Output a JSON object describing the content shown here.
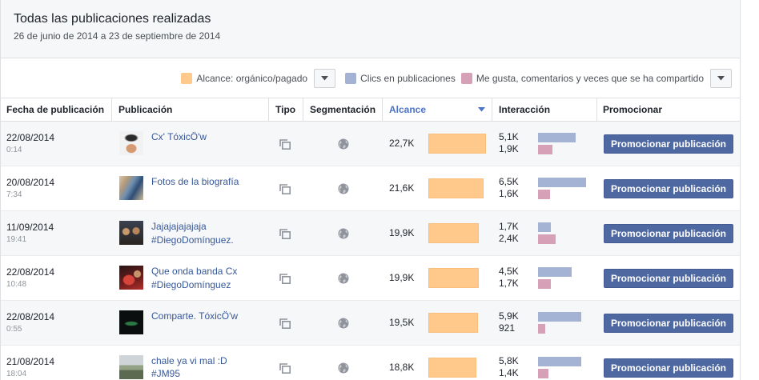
{
  "header": {
    "title": "Todas las publicaciones realizadas",
    "date_range": "26 de junio de 2014 a 23 de septiembre de 2014"
  },
  "legend": {
    "reach": {
      "label": "Alcance: orgánico/pagado",
      "color": "#ffc98b"
    },
    "clicks": {
      "label": "Clics en publicaciones",
      "color": "#a4b2d4"
    },
    "engagement": {
      "label": "Me gusta, comentarios y veces que se ha compartido",
      "color": "#d6a1b7"
    }
  },
  "icons": {
    "dropdown": "chevron-down-icon",
    "sort": "sort-descending-icon",
    "post_type": "photo-icon",
    "targeting": "globe-icon"
  },
  "table": {
    "columns": {
      "date": "Fecha de publicación",
      "post": "Publicación",
      "type": "Tipo",
      "targeting": "Segmentación",
      "reach": "Alcance",
      "interaction": "Interacción",
      "promote": "Promocionar"
    },
    "promote_button_label": "Promocionar publicación",
    "rows": [
      {
        "date": "22/08/2014",
        "time": "0:14",
        "text": [
          "Cx' TóxicÖ'w"
        ],
        "reach": "22,7K",
        "clicks": "5,1K",
        "engagement": "1,9K"
      },
      {
        "date": "20/08/2014",
        "time": "7:34",
        "text": [
          "Fotos de la biografía"
        ],
        "reach": "21,6K",
        "clicks": "6,5K",
        "engagement": "1,6K"
      },
      {
        "date": "11/09/2014",
        "time": "19:41",
        "text": [
          "Jajajajajajaja",
          "#DiegoDomínguez."
        ],
        "reach": "19,9K",
        "clicks": "1,7K",
        "engagement": "2,4K"
      },
      {
        "date": "22/08/2014",
        "time": "10:48",
        "text": [
          "Que onda banda Cx",
          "#DiegoDomínguez"
        ],
        "reach": "19,9K",
        "clicks": "4,5K",
        "engagement": "1,7K"
      },
      {
        "date": "22/08/2014",
        "time": "0:55",
        "text": [
          "Comparte. TóxicÖ'w"
        ],
        "reach": "19,5K",
        "clicks": "5,9K",
        "engagement": "921"
      },
      {
        "date": "21/08/2014",
        "time": "18:04",
        "text": [
          "chale ya vi mal :D",
          "#JM95"
        ],
        "reach": "18,8K",
        "clicks": "5,8K",
        "engagement": "1,4K"
      }
    ]
  }
}
